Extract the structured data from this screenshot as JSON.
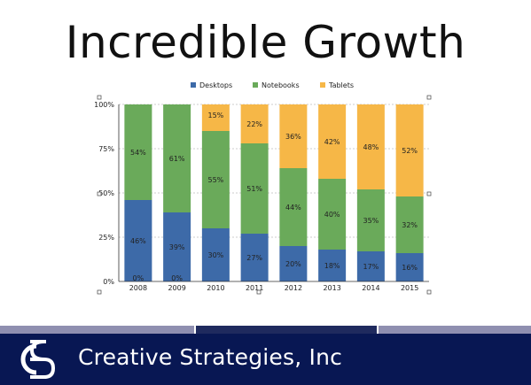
{
  "slide": {
    "title": "Incredible Growth",
    "company": "Creative Strategies, Inc"
  },
  "colors": {
    "desktops": "#3d6aa8",
    "notebooks": "#6aaa5a",
    "tablets": "#f6b747",
    "footer_bg": "#081753",
    "stripe_gray": "#8f8fb0",
    "stripe_navy": "#1f2a5e"
  },
  "chart_data": {
    "type": "bar",
    "stacked": true,
    "categories": [
      "2008",
      "2009",
      "2010",
      "2011",
      "2012",
      "2013",
      "2014",
      "2015"
    ],
    "series": [
      {
        "name": "Desktops",
        "values": [
          46,
          39,
          30,
          27,
          20,
          18,
          17,
          16
        ],
        "labels": [
          "46%",
          "39%",
          "30%",
          "27%",
          "20%",
          "18%",
          "17%",
          "16%"
        ]
      },
      {
        "name": "Notebooks",
        "values": [
          54,
          61,
          55,
          51,
          44,
          40,
          35,
          32
        ],
        "labels": [
          "54%",
          "61%",
          "55%",
          "51%",
          "44%",
          "40%",
          "35%",
          "32%"
        ]
      },
      {
        "name": "Tablets",
        "values": [
          0,
          0,
          15,
          22,
          36,
          42,
          48,
          52
        ],
        "labels": [
          "0%",
          "0%",
          "15%",
          "22%",
          "36%",
          "42%",
          "48%",
          "52%"
        ]
      }
    ],
    "y_ticks": [
      "0%",
      "25%",
      "50%",
      "75%",
      "100%"
    ],
    "ylim": [
      0,
      100
    ],
    "grid": true,
    "legend": "top-center",
    "title": "",
    "xlabel": "",
    "ylabel": ""
  }
}
